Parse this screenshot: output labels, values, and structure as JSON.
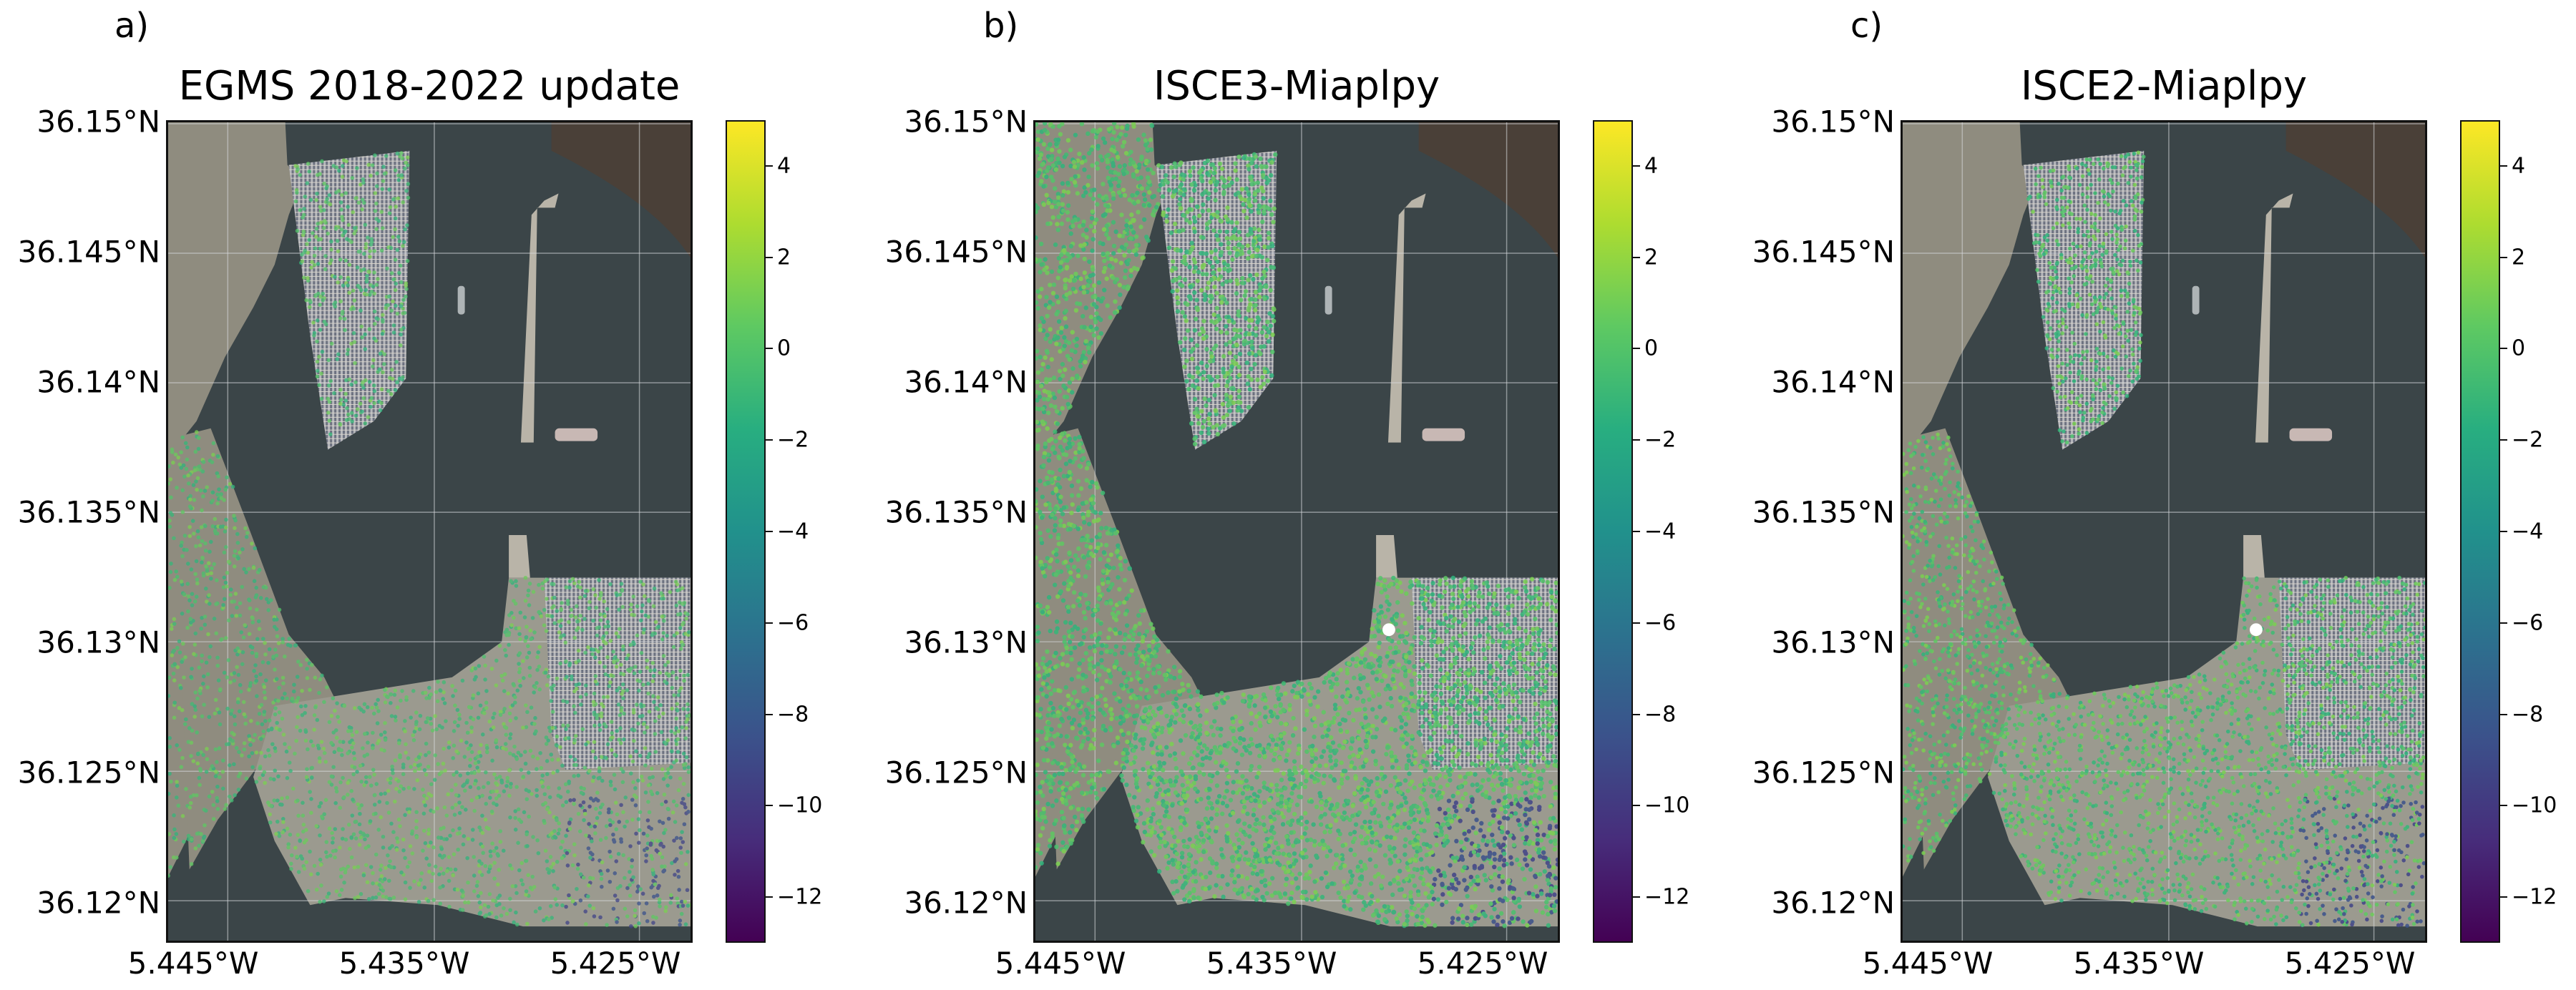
{
  "figure": {
    "panels": [
      {
        "letter": "a)",
        "title": "EGMS 2018-2022 update",
        "variant": "egms"
      },
      {
        "letter": "b)",
        "title": "ISCE3-Miaplpy",
        "variant": "isce3"
      },
      {
        "letter": "c)",
        "title": "ISCE2-Miaplpy",
        "variant": "isce2"
      }
    ],
    "lat_ticks": [
      "36.15°N",
      "36.145°N",
      "36.14°N",
      "36.135°N",
      "36.13°N",
      "36.125°N",
      "36.12°N"
    ],
    "lon_ticks": [
      "5.445°W",
      "5.435°W",
      "5.425°W"
    ],
    "colorbar": {
      "colormap": "viridis",
      "min": -13,
      "max": 5,
      "ticks": [
        "4",
        "2",
        "0",
        "−2",
        "−4",
        "−6",
        "−8",
        "−10",
        "−12"
      ],
      "tick_values": [
        4,
        2,
        0,
        -2,
        -4,
        -6,
        -8,
        -10,
        -12
      ],
      "stops": [
        "#440154",
        "#472d7b",
        "#3b528b",
        "#2c728e",
        "#21918c",
        "#28ae80",
        "#5ec962",
        "#addc30",
        "#fde725"
      ]
    }
  },
  "chart_data": {
    "type": "map",
    "subplots": [
      {
        "title": "EGMS 2018-2022 update",
        "colorbar_range": [
          -13,
          5
        ]
      },
      {
        "title": "ISCE3-Miaplpy",
        "colorbar_range": [
          -13,
          5
        ]
      },
      {
        "title": "ISCE2-Miaplpy",
        "colorbar_range": [
          -13,
          5
        ]
      }
    ],
    "lat_range": [
      36.1185,
      36.15
    ],
    "lon_range": [
      -5.4465,
      -5.4215
    ],
    "colorbar_ticks": [
      4,
      2,
      0,
      -2,
      -4,
      -6,
      -8,
      -10,
      -12
    ]
  }
}
